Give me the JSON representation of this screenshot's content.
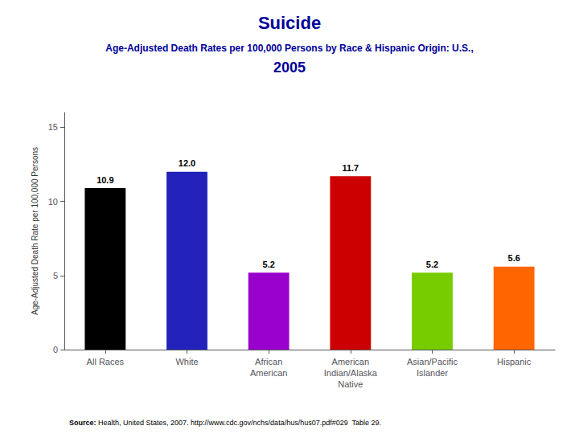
{
  "chart_data": {
    "type": "bar",
    "title": "Suicide",
    "subtitle": [
      "Age-Adjusted Death Rates per 100,000 Persons by Race & Hispanic Origin: U.S.,",
      "2005"
    ],
    "categories": [
      "All Races",
      "White",
      "African\nAmerican",
      "American\nIndian/Alaska\nNative",
      "Asian/Pacific\nIslander",
      "Hispanic"
    ],
    "values": [
      10.9,
      12.0,
      5.2,
      11.7,
      5.2,
      5.6
    ],
    "value_labels": [
      "10.9",
      "12.0",
      "5.2",
      "11.7",
      "5.2",
      "5.6"
    ],
    "colors": [
      "#000000",
      "#2222bb",
      "#9900cc",
      "#cc0000",
      "#77cc00",
      "#ff6600"
    ],
    "ylabel": "Age-Adjusted Death Rate per 100,000 Persons",
    "ylim": [
      0,
      16
    ],
    "yticks": [
      0,
      5,
      10,
      15
    ],
    "grid": false,
    "data_labels": true,
    "annotations": [
      "Source:",
      " Health, United States, 2007. http://www.cdc.gov/nchs/data/hus/hus07.pdf#029  Table 29."
    ]
  }
}
